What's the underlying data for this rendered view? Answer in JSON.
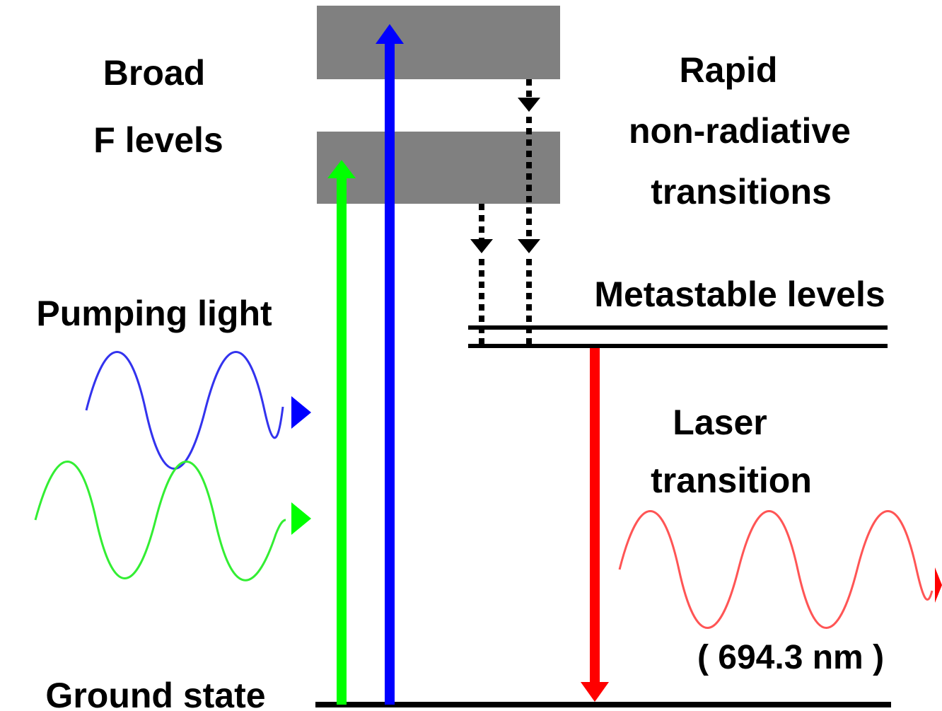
{
  "labels": {
    "broad_line1": "Broad",
    "broad_line2": "F levels",
    "rapid_line1": "Rapid",
    "rapid_line2": "non-radiative",
    "rapid_line3": "transitions",
    "metastable": "Metastable levels",
    "pumping": "Pumping light",
    "laser_line1": "Laser",
    "laser_line2": "transition",
    "wavelength": "( 694.3 nm )",
    "ground": "Ground state"
  },
  "colors": {
    "band": "#808080",
    "pump_green": "#00ff00",
    "pump_blue": "#0000ff",
    "laser_red": "#ff0000",
    "wave_blue": "#3333ee",
    "wave_green": "#33ee33",
    "wave_red": "#ff5555",
    "level_line": "#000000"
  },
  "icons": {
    "pump_arrows": "arrow-up-icon",
    "laser_arrow": "arrow-down-icon",
    "nonradiative": "dotted-arrow-down-icon",
    "wave_heads": "triangle-right-icon"
  }
}
